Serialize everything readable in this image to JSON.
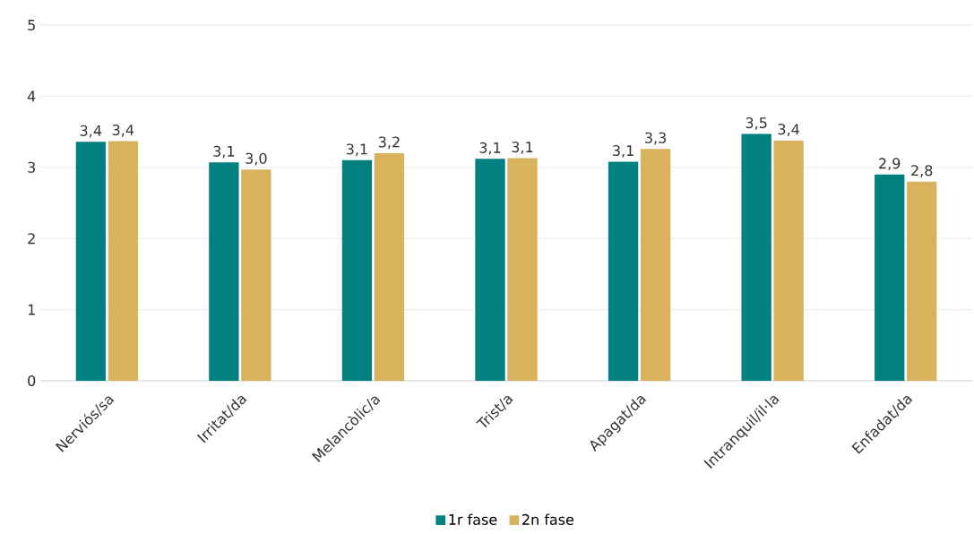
{
  "chart_data": {
    "type": "bar",
    "categories": [
      "Nerviós/sa",
      "Irritat/da",
      "Melancòlic/a",
      "Trist/a",
      "Apagat/da",
      "Intranquil/il·la",
      "Enfadat/da"
    ],
    "series": [
      {
        "name": "1r fase",
        "color": "#008080",
        "values": [
          3.36,
          3.07,
          3.1,
          3.12,
          3.08,
          3.47,
          2.9
        ],
        "value_labels": [
          "3,4",
          "3,1",
          "3,1",
          "3,1",
          "3,1",
          "3,5",
          "2,9"
        ]
      },
      {
        "name": "2n fase",
        "color": "#d8b25c",
        "values": [
          3.37,
          2.97,
          3.2,
          3.13,
          3.26,
          3.38,
          2.8
        ],
        "value_labels": [
          "3,4",
          "3,0",
          "3,2",
          "3,1",
          "3,3",
          "3,4",
          "2,8"
        ]
      }
    ],
    "ylim": [
      0,
      5
    ],
    "yticks": [
      0,
      1,
      2,
      3,
      4,
      5
    ],
    "grid": "y",
    "legend": "bottom"
  }
}
